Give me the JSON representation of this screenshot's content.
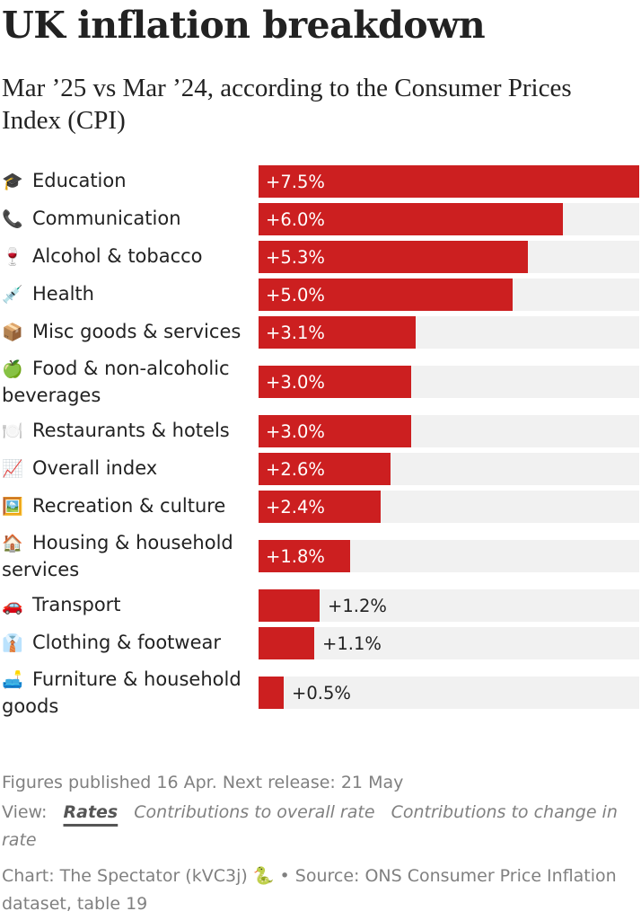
{
  "header": {
    "title": "UK inflation breakdown",
    "subtitle": "Mar ’25 vs Mar ’24, according to the Consumer Prices Index (CPI)"
  },
  "colors": {
    "bar": "#cc1f20",
    "track": "#f1f1f1",
    "text": "#222222",
    "muted": "#808080"
  },
  "chart_data": {
    "type": "bar",
    "orientation": "horizontal",
    "title": "UK inflation breakdown",
    "subtitle": "Mar ’25 vs Mar ’24, according to the Consumer Prices Index (CPI)",
    "xlim": [
      0,
      7.5
    ],
    "categories": [
      "Education",
      "Communication",
      "Alcohol & tobacco",
      "Health",
      "Misc goods & services",
      "Food & non-alcoholic beverages",
      "Restaurants & hotels",
      "Overall index",
      "Recreation & culture",
      "Housing & household services",
      "Transport",
      "Clothing & footwear",
      "Furniture & household goods"
    ],
    "icons": [
      "graduation-cap-icon",
      "telephone-icon",
      "wine-glass-icon",
      "syringe-icon",
      "package-icon",
      "apple-icon",
      "plate-icon",
      "trend-chart-icon",
      "framed-picture-icon",
      "house-icon",
      "car-icon",
      "shirt-tie-icon",
      "couch-icon"
    ],
    "emoji": [
      "🎓",
      "📞",
      "🍷",
      "💉",
      "📦",
      "🍏",
      "🍽️",
      "📈",
      "🖼️",
      "🏠",
      "🚗",
      "👔",
      "🛋️"
    ],
    "values": [
      7.5,
      6.0,
      5.3,
      5.0,
      3.1,
      3.0,
      3.0,
      2.6,
      2.4,
      1.8,
      1.2,
      1.1,
      0.5
    ],
    "value_labels": [
      "+7.5%",
      "+6.0%",
      "+5.3%",
      "+5.0%",
      "+3.1%",
      "+3.0%",
      "+3.0%",
      "+2.6%",
      "+2.4%",
      "+1.8%",
      "+1.2%",
      "+1.1%",
      "+0.5%"
    ]
  },
  "footer": {
    "published": "Figures published 16 Apr. Next release: 21 May",
    "view_label": "View:",
    "view_options": [
      "Rates",
      "Contributions to overall rate",
      "Contributions to change in rate"
    ],
    "active_view": 0,
    "source_prefix": "Chart: The Spectator (kVC3j)",
    "source_icon": "snake-icon",
    "source_emoji": "🐍",
    "source_suffix": "• Source: ONS Consumer Price Inflation dataset, table 19"
  }
}
